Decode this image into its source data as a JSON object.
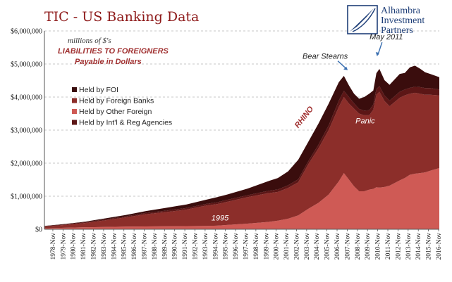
{
  "chart_data": {
    "type": "area",
    "stacked": true,
    "title": "TIC - US Banking Data",
    "subtitle_lines": [
      "millions of $'s",
      "LIABILITIES TO FOREIGNERS",
      "Payable in Dollars"
    ],
    "brand_lines": [
      "Alhambra",
      "Investment",
      "Partners"
    ],
    "ylim": [
      0,
      6000000
    ],
    "yticks": [
      "$0",
      "$1,000,000",
      "$2,000,000",
      "$3,000,000",
      "$4,000,000",
      "$5,000,000",
      "$6,000,000"
    ],
    "grid": "horizontal dashed",
    "legend_position": "left-middle",
    "xlim": [
      1978,
      2016.9
    ],
    "xtick_labels": [
      "1978-Nov",
      "1979-Nov",
      "1980-Nov",
      "1981-Nov",
      "1982-Nov",
      "1983-Nov",
      "1984-Nov",
      "1985-Nov",
      "1986-Nov",
      "1987-Nov",
      "1988-Nov",
      "1989-Nov",
      "1990-Nov",
      "1991-Nov",
      "1992-Nov",
      "1993-Nov",
      "1994-Nov",
      "1995-Nov",
      "1996-Nov",
      "1997-Nov",
      "1998-Nov",
      "1999-Nov",
      "2000-Nov",
      "2001-Nov",
      "2002-Nov",
      "2003-Nov",
      "2004-Nov",
      "2005-Nov",
      "2006-Nov",
      "2007-Nov",
      "2008-Nov",
      "2009-Nov",
      "2010-Nov",
      "2011-Nov",
      "2012-Nov",
      "2013-Nov",
      "2014-Nov",
      "2015-Nov",
      "2016-Nov"
    ],
    "x": [
      1978,
      1980,
      1982,
      1984,
      1986,
      1988,
      1990,
      1992,
      1994,
      1995,
      1996,
      1998,
      2000,
      2001,
      2002,
      2003,
      2004,
      2005,
      2006,
      2007,
      2007.5,
      2008,
      2008.5,
      2009,
      2009.5,
      2010,
      2010.4,
      2010.7,
      2011,
      2011.5,
      2012,
      2013,
      2013.5,
      2014,
      2014.5,
      2015,
      2015.5,
      2016,
      2016.9
    ],
    "series": [
      {
        "name": "Held by Other Foreign",
        "color": "#cf5a55",
        "values": [
          30000,
          45000,
          60000,
          70000,
          80000,
          85000,
          90000,
          95000,
          100000,
          110000,
          130000,
          170000,
          220000,
          260000,
          320000,
          420000,
          620000,
          800000,
          1050000,
          1450000,
          1700000,
          1500000,
          1300000,
          1150000,
          1150000,
          1200000,
          1220000,
          1270000,
          1260000,
          1280000,
          1320000,
          1480000,
          1550000,
          1650000,
          1680000,
          1700000,
          1720000,
          1770000,
          1850000
        ]
      },
      {
        "name": "Held by Foreign Banks",
        "color": "#8c2e2a",
        "values": [
          50000,
          85000,
          130000,
          200000,
          280000,
          370000,
          430000,
          500000,
          620000,
          650000,
          700000,
          800000,
          870000,
          870000,
          930000,
          1000000,
          1350000,
          1650000,
          1950000,
          2250000,
          2300000,
          2300000,
          2350000,
          2350000,
          2300000,
          2250000,
          2400000,
          2800000,
          2900000,
          2600000,
          2400000,
          2500000,
          2500000,
          2450000,
          2450000,
          2400000,
          2350000,
          2300000,
          2200000
        ]
      },
      {
        "name": "Held by Int'l & Reg Agencies",
        "color": "#5c1616",
        "values": [
          15000,
          20000,
          25000,
          30000,
          30000,
          40000,
          45000,
          50000,
          50000,
          55000,
          60000,
          60000,
          70000,
          75000,
          80000,
          90000,
          90000,
          110000,
          140000,
          190000,
          190000,
          200000,
          160000,
          140000,
          140000,
          150000,
          160000,
          170000,
          170000,
          170000,
          170000,
          180000,
          180000,
          180000,
          180000,
          200000,
          200000,
          200000,
          180000
        ]
      },
      {
        "name": "Held by FOI",
        "color": "#3a0d0d",
        "values": [
          5000,
          10000,
          15000,
          30000,
          40000,
          55000,
          85000,
          105000,
          130000,
          155000,
          160000,
          200000,
          290000,
          345000,
          420000,
          590000,
          590000,
          640000,
          660000,
          560000,
          450000,
          350000,
          290000,
          310000,
          410000,
          500000,
          420000,
          480000,
          520000,
          460000,
          480000,
          540000,
          500000,
          620000,
          640000,
          560000,
          480000,
          430000,
          370000
        ]
      }
    ],
    "legend_items": [
      "Held by FOI",
      "Held by Foreign Banks",
      "Held by Other Foreign",
      "Held by Int'l & Reg Agencies"
    ],
    "legend_colors": [
      "#3a0d0d",
      "#8c2e2a",
      "#cf5a55",
      "#5c1616"
    ],
    "annotations": [
      {
        "text": "Bear Stearns",
        "x": 2007.6,
        "y": 4900000
      },
      {
        "text": "May 2011",
        "x": 2011.4,
        "y": 5700000
      },
      {
        "text": "RHINO",
        "x": 2003.0,
        "y": 3050000
      },
      {
        "text": "Panic",
        "x": 2009.6,
        "y": 3200000
      },
      {
        "text": "1995",
        "x": 1995.3,
        "y": 270000
      }
    ]
  }
}
